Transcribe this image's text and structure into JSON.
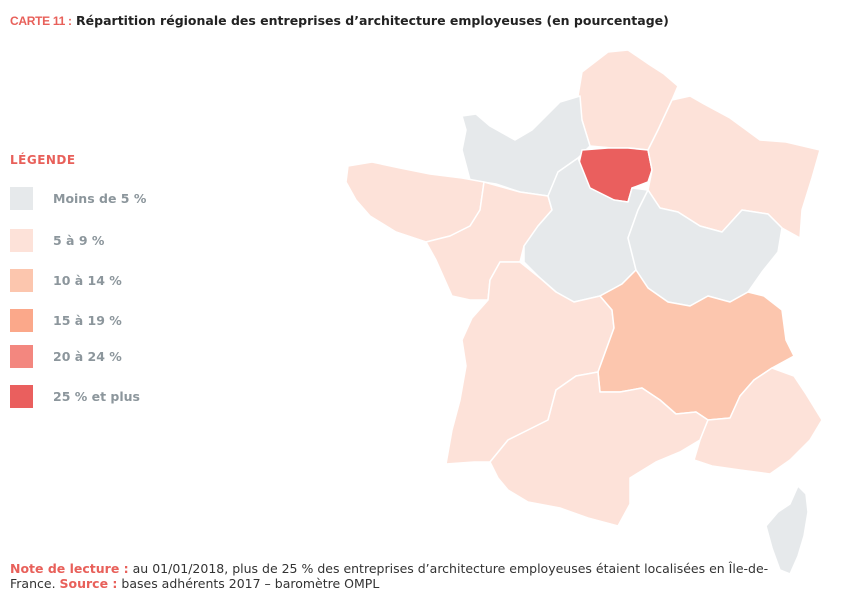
{
  "title": {
    "tag": "CARTE 11 :",
    "text": "Répartition régionale des entreprises d’architecture employeuses (en pourcentage)"
  },
  "legend": {
    "title": "LÉGENDE",
    "items": [
      {
        "label": "Moins de 5 %",
        "color": "#e6e9eb"
      },
      {
        "label": "5 à 9 %",
        "color": "#fde2d9"
      },
      {
        "label": "10 à 14 %",
        "color": "#fcc6ae"
      },
      {
        "label": "15 à 19 %",
        "color": "#fba88a"
      },
      {
        "label": "20 à 24 %",
        "color": "#f3877f"
      },
      {
        "label": "25 % et plus",
        "color": "#ea5f5e"
      }
    ]
  },
  "map_regions": [
    {
      "name": "hauts-de-france",
      "class": "5 à 9 %"
    },
    {
      "name": "normandie",
      "class": "Moins de 5 %"
    },
    {
      "name": "ile-de-france",
      "class": "25 % et plus"
    },
    {
      "name": "grand-est",
      "class": "5 à 9 %"
    },
    {
      "name": "bretagne",
      "class": "5 à 9 %"
    },
    {
      "name": "pays-de-la-loire",
      "class": "5 à 9 %"
    },
    {
      "name": "centre-val-de-loire",
      "class": "Moins de 5 %"
    },
    {
      "name": "bourgogne-franche-comte",
      "class": "Moins de 5 %"
    },
    {
      "name": "nouvelle-aquitaine",
      "class": "5 à 9 %"
    },
    {
      "name": "auvergne-rhone-alpes",
      "class": "10 à 14 %"
    },
    {
      "name": "occitanie",
      "class": "5 à 9 %"
    },
    {
      "name": "provence-alpes-cote-d-azur",
      "class": "5 à 9 %"
    },
    {
      "name": "corse",
      "class": "Moins de 5 %"
    }
  ],
  "note": {
    "lecture_label": "Note de lecture :",
    "lecture_text": " au 01/01/2018, plus de 25 % des entreprises d’architecture employeuses étaient localisées en Île-de-France. ",
    "source_label": "Source :",
    "source_text": " bases adhérents 2017 – baromètre OMPL"
  }
}
